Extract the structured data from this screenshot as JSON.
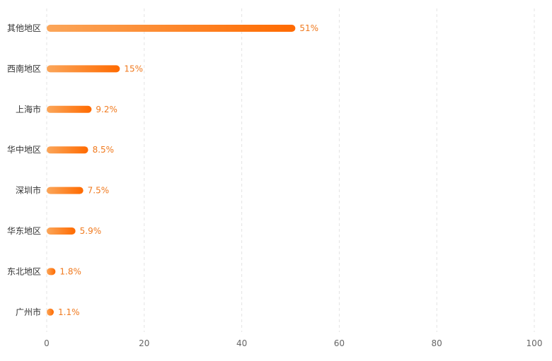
{
  "chart_data": {
    "type": "bar",
    "orientation": "horizontal",
    "categories": [
      "其他地区",
      "西南地区",
      "上海市",
      "华中地区",
      "深圳市",
      "华东地区",
      "东北地区",
      "广州市"
    ],
    "values": [
      51,
      15,
      9.2,
      8.5,
      7.5,
      5.9,
      1.8,
      1.1
    ],
    "value_labels": [
      "51%",
      "15%",
      "9.2%",
      "8.5%",
      "7.5%",
      "5.9%",
      "1.8%",
      "1.1%"
    ],
    "x_ticks": [
      "0",
      "20",
      "40",
      "60",
      "80",
      "100"
    ],
    "xlim": [
      0,
      100
    ],
    "grid": "vertical dashed",
    "bar_gradient": [
      "#fba65a",
      "#ff6a00"
    ],
    "label_color": "#f07a1f",
    "title": "",
    "xlabel": "",
    "ylabel": ""
  }
}
